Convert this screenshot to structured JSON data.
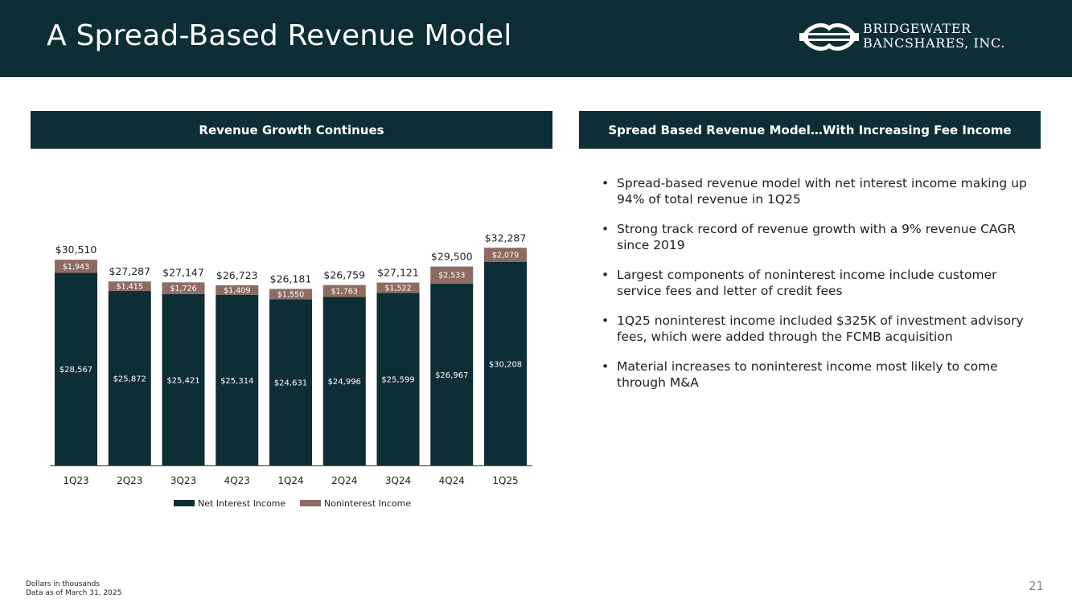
{
  "header": {
    "title": "A Spread-Based Revenue Model",
    "logo_line1": "BRIDGEWATER",
    "logo_line2": "BANCSHARES, INC."
  },
  "left_panel": {
    "heading": "Revenue Growth Continues"
  },
  "right_panel": {
    "heading": "Spread Based Revenue Model…With Increasing Fee Income",
    "bullet_glyph": "•",
    "bullets": [
      "Spread-based revenue model with net interest income making up 94% of total revenue in 1Q25",
      "Strong track record of revenue growth with a 9% revenue CAGR since 2019",
      "Largest components of noninterest income include customer service fees and letter of credit fees",
      "1Q25 noninterest income included $325K of investment advisory fees, which were added through the FCMB acquisition",
      "Material increases to noninterest income most likely to come through M&A"
    ]
  },
  "chart_data": {
    "type": "bar",
    "stacked": true,
    "title": "",
    "xlabel": "",
    "ylabel": "",
    "ylim": [
      0,
      35000
    ],
    "grid": false,
    "legend_position": "bottom",
    "categories": [
      "1Q23",
      "2Q23",
      "3Q23",
      "4Q23",
      "1Q24",
      "2Q24",
      "3Q24",
      "4Q24",
      "1Q25"
    ],
    "series": [
      {
        "name": "Net Interest Income",
        "color": "#0d2e35",
        "values": [
          28567,
          25872,
          25421,
          25314,
          24631,
          24996,
          25599,
          26967,
          30208
        ]
      },
      {
        "name": "Noninterest Income",
        "color": "#8e6b62",
        "values": [
          1943,
          1415,
          1726,
          1409,
          1550,
          1763,
          1522,
          2533,
          2079
        ]
      }
    ],
    "totals": [
      30510,
      27287,
      27147,
      26723,
      26181,
      26759,
      27121,
      29500,
      32287
    ]
  },
  "footer": {
    "note1": "Dollars in thousands",
    "note2": "Data as of March 31, 2025",
    "page_number": "21"
  },
  "colors": {
    "navy": "#0d2e35",
    "fee": "#8e6b62",
    "background": "#ffffff"
  }
}
